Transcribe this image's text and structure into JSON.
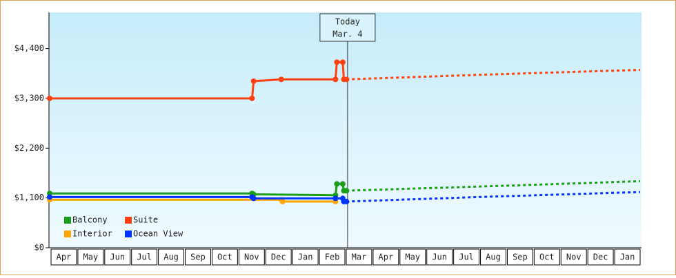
{
  "chart_data": {
    "type": "line",
    "ylim": [
      0,
      5200
    ],
    "yticks": [
      0,
      {
        "value": 1100,
        "label": "$1,100"
      },
      {
        "value": 2200,
        "label": "$2,200"
      },
      {
        "value": 3300,
        "label": "$3,300"
      },
      {
        "value": 4400,
        "label": "$4,400"
      }
    ],
    "ytick_zero_label": "$0",
    "xlim": [
      0,
      22
    ],
    "categories": [
      "Apr",
      "May",
      "Jun",
      "Jul",
      "Aug",
      "Sep",
      "Oct",
      "Nov",
      "Dec",
      "Jan",
      "Feb",
      "Mar",
      "Apr",
      "May",
      "Jun",
      "Jul",
      "Aug",
      "Sep",
      "Oct",
      "Nov",
      "Dec",
      "Jan"
    ],
    "today": {
      "label": "Today",
      "date": "Mar. 4",
      "x": 11.1
    },
    "legend": "lower left",
    "series": [
      {
        "name": "Balcony",
        "color": "#1a9e1a",
        "x": [
          0,
          7.54,
          7.6,
          10.65,
          10.7,
          10.92,
          10.96,
          11.06
        ],
        "values": [
          1200,
          1200,
          1180,
          1160,
          1410,
          1410,
          1260,
          1260
        ],
        "forecast_x": [
          11.06,
          16.5,
          22
        ],
        "forecast_values": [
          1260,
          1360,
          1470
        ]
      },
      {
        "name": "Suite",
        "color": "#ff4010",
        "x": [
          0,
          7.54,
          7.6,
          8.63,
          10.65,
          10.7,
          10.92,
          10.96,
          11.06
        ],
        "values": [
          3300,
          3300,
          3680,
          3720,
          3720,
          4100,
          4100,
          3720,
          3720
        ],
        "forecast_x": [
          11.06,
          16.5,
          22
        ],
        "forecast_values": [
          3720,
          3830,
          3930
        ]
      },
      {
        "name": "Interior",
        "color": "#ffa500",
        "x": [
          0,
          8.63,
          8.68,
          10.65
        ],
        "values": [
          1060,
          1060,
          1020,
          1020
        ],
        "forecast_x": [],
        "forecast_values": []
      },
      {
        "name": "Ocean View",
        "color": "#0033ff",
        "x": [
          0,
          7.54,
          7.6,
          10.65,
          10.92,
          10.96,
          11.06
        ],
        "values": [
          1120,
          1120,
          1090,
          1090,
          1090,
          1020,
          1020
        ],
        "forecast_x": [
          11.06,
          16.5,
          22
        ],
        "forecast_values": [
          1020,
          1130,
          1230
        ]
      }
    ]
  }
}
